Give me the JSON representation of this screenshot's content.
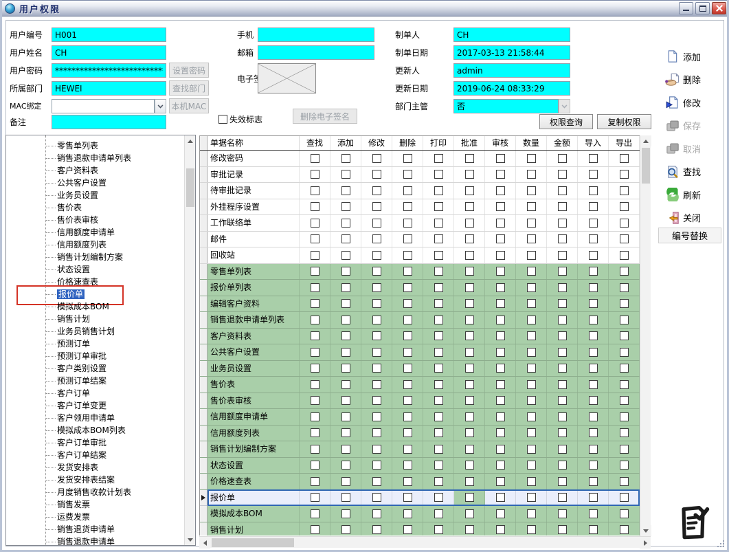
{
  "window": {
    "title": "用户权限"
  },
  "form": {
    "left_fields": [
      {
        "label": "用户编号",
        "value": "H001"
      },
      {
        "label": "用户姓名",
        "value": "CH"
      },
      {
        "label": "用户密码",
        "value": "********************************"
      },
      {
        "label": "所属部门",
        "value": "HEWEI"
      },
      {
        "label": "MAC绑定",
        "value": ""
      },
      {
        "label": "备注",
        "value": ""
      }
    ],
    "mobile_label": "手机",
    "mobile_value": "",
    "email_label": "邮箱",
    "email_value": "",
    "signature_label": "电子签名",
    "invalid_flag_label": "失效标志",
    "right_fields": [
      {
        "label": "制单人",
        "value": "CH"
      },
      {
        "label": "制单日期",
        "value": "2017-03-13 21:58:44"
      },
      {
        "label": "更新人",
        "value": "admin"
      },
      {
        "label": "更新日期",
        "value": "2019-06-24 08:33:29"
      },
      {
        "label": "部门主管",
        "value": "否"
      }
    ],
    "buttons": {
      "set_password": "设置密码",
      "find_dept": "查找部门",
      "local_mac": "本机MAC",
      "delete_signature": "删除电子签名",
      "perm_query": "权限查询",
      "copy_perm": "复制权限"
    }
  },
  "tree": {
    "selected": "报价单",
    "items": [
      "零售单列表",
      "销售退款申请单列表",
      "客户资料表",
      "公共客户设置",
      "业务员设置",
      "售价表",
      "售价表审核",
      "信用额度申请单",
      "信用额度列表",
      "销售计划编制方案",
      "状态设置",
      "价格速查表",
      "报价单",
      "模拟成本BOM",
      "销售计划",
      "业务员销售计划",
      "预测订单",
      "预测订单审批",
      "客户类别设置",
      "预测订单结案",
      "客户订单",
      "客户订单变更",
      "客户领用申请单",
      "模拟成本BOM列表",
      "客户订单审批",
      "客户订单结案",
      "发货安排表",
      "发货安排表结案",
      "月度销售收款计划表",
      "销售发票",
      "运费发票",
      "销售退货申请单",
      "销售退款申请单"
    ]
  },
  "table": {
    "columns": [
      "单据名称",
      "查找",
      "添加",
      "修改",
      "删除",
      "打印",
      "批准",
      "审核",
      "数量",
      "金额",
      "导入",
      "导出"
    ],
    "selected_row": "报价单",
    "selected_green_column": "批准",
    "rows": [
      {
        "name": "修改密码",
        "zone": "white"
      },
      {
        "name": "审批记录",
        "zone": "white"
      },
      {
        "name": "待审批记录",
        "zone": "white"
      },
      {
        "name": "外挂程序设置",
        "zone": "white"
      },
      {
        "name": "工作联络单",
        "zone": "white"
      },
      {
        "name": "邮件",
        "zone": "white"
      },
      {
        "name": "回收站",
        "zone": "white"
      },
      {
        "name": "零售单列表",
        "zone": "green"
      },
      {
        "name": "报价单列表",
        "zone": "green"
      },
      {
        "name": "编辑客户资料",
        "zone": "green"
      },
      {
        "name": "销售退款申请单列表",
        "zone": "green"
      },
      {
        "name": "客户资料表",
        "zone": "green"
      },
      {
        "name": "公共客户设置",
        "zone": "green"
      },
      {
        "name": "业务员设置",
        "zone": "green"
      },
      {
        "name": "售价表",
        "zone": "green"
      },
      {
        "name": "售价表审核",
        "zone": "green"
      },
      {
        "name": "信用额度申请单",
        "zone": "green"
      },
      {
        "name": "信用额度列表",
        "zone": "green"
      },
      {
        "name": "销售计划编制方案",
        "zone": "green"
      },
      {
        "name": "状态设置",
        "zone": "green"
      },
      {
        "name": "价格速查表",
        "zone": "green"
      },
      {
        "name": "报价单",
        "zone": "green"
      },
      {
        "name": "模拟成本BOM",
        "zone": "green"
      },
      {
        "name": "销售计划",
        "zone": "green"
      }
    ]
  },
  "toolbar": {
    "items": [
      {
        "key": "add",
        "label": "添加",
        "icon": "add-page-icon",
        "disabled": false
      },
      {
        "key": "delete",
        "label": "删除",
        "icon": "delete-hand-icon",
        "disabled": false
      },
      {
        "key": "modify",
        "label": "修改",
        "icon": "modify-page-icon",
        "disabled": false
      },
      {
        "key": "save",
        "label": "保存",
        "icon": "save-icon",
        "disabled": true
      },
      {
        "key": "cancel",
        "label": "取消",
        "icon": "cancel-icon",
        "disabled": true
      },
      {
        "key": "find",
        "label": "查找",
        "icon": "search-icon",
        "disabled": false
      },
      {
        "key": "refresh",
        "label": "刷新",
        "icon": "refresh-icon",
        "disabled": false
      },
      {
        "key": "close",
        "label": "关闭",
        "icon": "close-door-icon",
        "disabled": false
      }
    ],
    "replace_button": "编号替换"
  },
  "colors": {
    "field_bg": "#00ffff",
    "green_row": "#a9cfa9",
    "selected_row_bg": "#eaeefb",
    "tree_selected_bg": "#2f63c0",
    "highlight_box": "#d43326"
  }
}
